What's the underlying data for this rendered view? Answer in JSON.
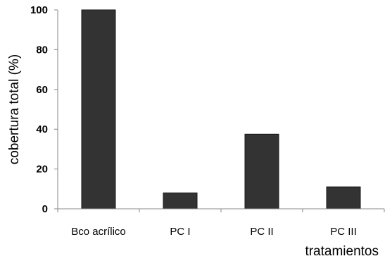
{
  "chart_data": {
    "type": "bar",
    "categories": [
      "Bco acrílico",
      "PC I",
      "PC II",
      "PC III"
    ],
    "values": [
      100,
      8,
      37.5,
      11
    ],
    "xlabel": "tratamientos",
    "ylabel": "cobertura total (%)",
    "ylim": [
      0,
      100
    ],
    "yticks": [
      "0",
      "20",
      "40",
      "60",
      "80",
      "100"
    ],
    "grid": false,
    "legend": "none",
    "bar_color": "#333333",
    "axis_color": "#888888"
  }
}
